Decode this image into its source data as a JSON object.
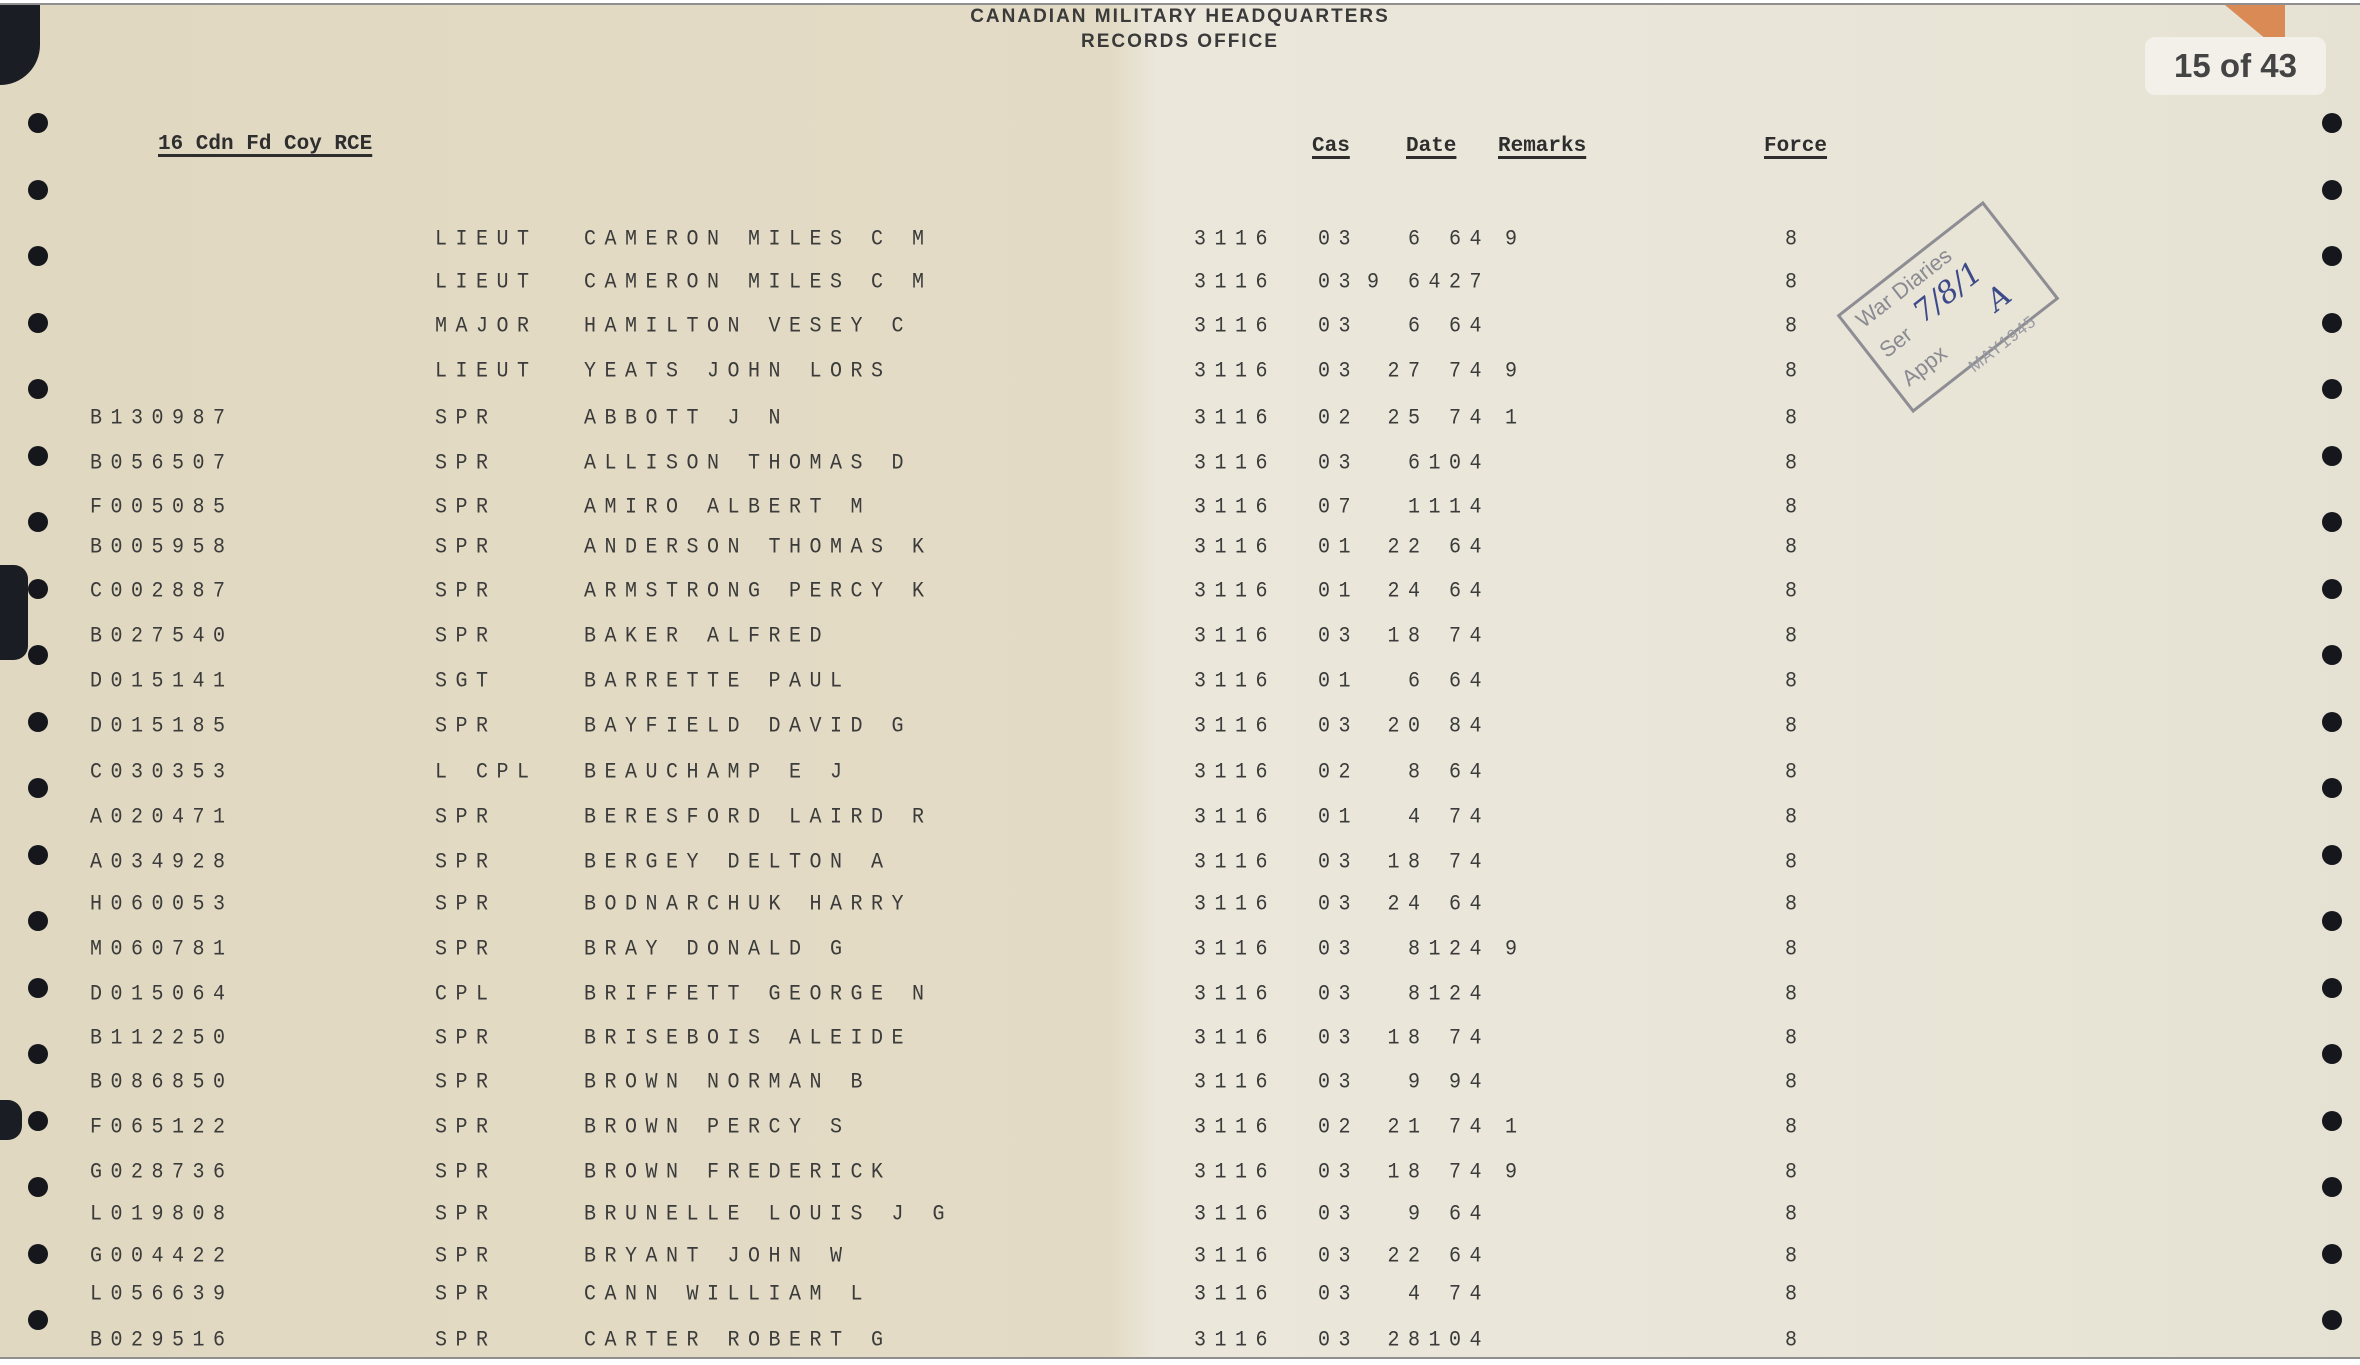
{
  "header": {
    "line1": "CANADIAN MILITARY HEADQUARTERS",
    "line2": "RECORDS OFFICE"
  },
  "unit": "16 Cdn Fd Coy RCE",
  "columns": {
    "cas": "Cas",
    "date": "Date",
    "remarks": "Remarks",
    "force": "Force"
  },
  "page_indicator": "15 of 43",
  "stamp": {
    "title": "War Diaries",
    "ser_label": "Ser",
    "ser_value": "7/8/1",
    "appx_label": "Appx",
    "appx_value": "A",
    "date": "MAY1945"
  },
  "colors": {
    "paper": "#e3dbc5",
    "ink": "#3b3b3b",
    "stamp": "#8a8a92",
    "handwriting": "#3c4a8a"
  },
  "rows": [
    {
      "id": "",
      "rank": "LIEUT",
      "name": "CAMERON MILES C M",
      "code": "3116",
      "cas": "03",
      "date": "6 64",
      "remark": "9",
      "force": "8"
    },
    {
      "id": "",
      "rank": "LIEUT",
      "name": "CAMERON MILES C M",
      "code": "3116",
      "cas": "03",
      "date": "9 6427",
      "remark": "",
      "force": "8"
    },
    {
      "id": "",
      "rank": "MAJOR",
      "name": "HAMILTON VESEY C",
      "code": "3116",
      "cas": "03",
      "date": "6 64",
      "remark": "",
      "force": "8"
    },
    {
      "id": "",
      "rank": "LIEUT",
      "name": "YEATS JOHN LORS",
      "code": "3116",
      "cas": "03",
      "date": "27 74",
      "remark": "9",
      "force": "8"
    },
    {
      "id": "B130987",
      "rank": "SPR",
      "name": "ABBOTT J N",
      "code": "3116",
      "cas": "02",
      "date": "25 74",
      "remark": "1",
      "force": "8"
    },
    {
      "id": "B056507",
      "rank": "SPR",
      "name": "ALLISON THOMAS D",
      "code": "3116",
      "cas": "03",
      "date": "6104",
      "remark": "",
      "force": "8"
    },
    {
      "id": "F005085",
      "rank": "SPR",
      "name": "AMIRO ALBERT M",
      "code": "3116",
      "cas": "07",
      "date": "1114",
      "remark": "",
      "force": "8"
    },
    {
      "id": "B005958",
      "rank": "SPR",
      "name": "ANDERSON THOMAS K",
      "code": "3116",
      "cas": "01",
      "date": "22 64",
      "remark": "",
      "force": "8"
    },
    {
      "id": "C002887",
      "rank": "SPR",
      "name": "ARMSTRONG PERCY K",
      "code": "3116",
      "cas": "01",
      "date": "24 64",
      "remark": "",
      "force": "8"
    },
    {
      "id": "B027540",
      "rank": "SPR",
      "name": "BAKER ALFRED",
      "code": "3116",
      "cas": "03",
      "date": "18 74",
      "remark": "",
      "force": "8"
    },
    {
      "id": "D015141",
      "rank": "SGT",
      "name": "BARRETTE PAUL",
      "code": "3116",
      "cas": "01",
      "date": "6 64",
      "remark": "",
      "force": "8"
    },
    {
      "id": "D015185",
      "rank": "SPR",
      "name": "BAYFIELD DAVID G",
      "code": "3116",
      "cas": "03",
      "date": "20 84",
      "remark": "",
      "force": "8"
    },
    {
      "id": "C030353",
      "rank": "L CPL",
      "name": "BEAUCHAMP E J",
      "code": "3116",
      "cas": "02",
      "date": "8 64",
      "remark": "",
      "force": "8"
    },
    {
      "id": "A020471",
      "rank": "SPR",
      "name": "BERESFORD LAIRD R",
      "code": "3116",
      "cas": "01",
      "date": "4 74",
      "remark": "",
      "force": "8"
    },
    {
      "id": "A034928",
      "rank": "SPR",
      "name": "BERGEY DELTON A",
      "code": "3116",
      "cas": "03",
      "date": "18 74",
      "remark": "",
      "force": "8"
    },
    {
      "id": "H060053",
      "rank": "SPR",
      "name": "BODNARCHUK HARRY",
      "code": "3116",
      "cas": "03",
      "date": "24 64",
      "remark": "",
      "force": "8"
    },
    {
      "id": "M060781",
      "rank": "SPR",
      "name": "BRAY DONALD G",
      "code": "3116",
      "cas": "03",
      "date": "8124",
      "remark": "9",
      "force": "8"
    },
    {
      "id": "D015064",
      "rank": "CPL",
      "name": "BRIFFETT GEORGE N",
      "code": "3116",
      "cas": "03",
      "date": "8124",
      "remark": "",
      "force": "8"
    },
    {
      "id": "B112250",
      "rank": "SPR",
      "name": "BRISEBOIS ALEIDE",
      "code": "3116",
      "cas": "03",
      "date": "18 74",
      "remark": "",
      "force": "8"
    },
    {
      "id": "B086850",
      "rank": "SPR",
      "name": "BROWN NORMAN B",
      "code": "3116",
      "cas": "03",
      "date": "9 94",
      "remark": "",
      "force": "8"
    },
    {
      "id": "F065122",
      "rank": "SPR",
      "name": "BROWN PERCY S",
      "code": "3116",
      "cas": "02",
      "date": "21 74",
      "remark": "1",
      "force": "8"
    },
    {
      "id": "G028736",
      "rank": "SPR",
      "name": "BROWN FREDERICK",
      "code": "3116",
      "cas": "03",
      "date": "18 74",
      "remark": "9",
      "force": "8"
    },
    {
      "id": "L019808",
      "rank": "SPR",
      "name": "BRUNELLE LOUIS J G",
      "code": "3116",
      "cas": "03",
      "date": "9 64",
      "remark": "",
      "force": "8"
    },
    {
      "id": "G004422",
      "rank": "SPR",
      "name": "BRYANT JOHN W",
      "code": "3116",
      "cas": "03",
      "date": "22 64",
      "remark": "",
      "force": "8"
    },
    {
      "id": "L056639",
      "rank": "SPR",
      "name": "CANN WILLIAM L",
      "code": "3116",
      "cas": "03",
      "date": "4 74",
      "remark": "",
      "force": "8"
    },
    {
      "id": "B029516",
      "rank": "SPR",
      "name": "CARTER ROBERT G",
      "code": "3116",
      "cas": "03",
      "date": "28104",
      "remark": "",
      "force": "8"
    }
  ]
}
